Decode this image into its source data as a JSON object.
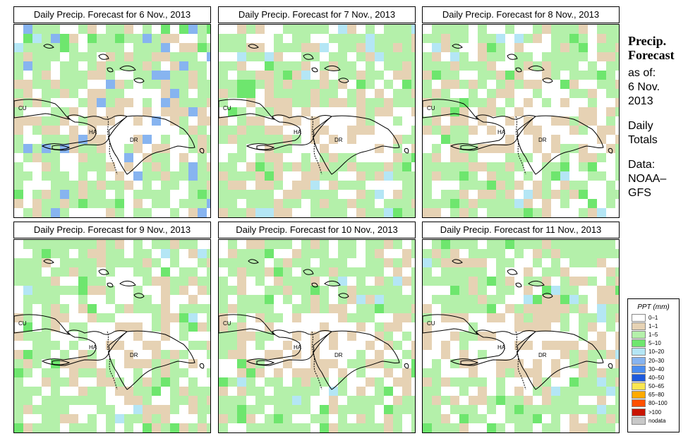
{
  "panels": [
    {
      "title": "Daily Precip. Forecast for  6 Nov., 2013",
      "seed": 11,
      "wet": 0.62
    },
    {
      "title": "Daily Precip. Forecast for  7 Nov., 2013",
      "seed": 23,
      "wet": 0.4
    },
    {
      "title": "Daily Precip. Forecast for  8 Nov., 2013",
      "seed": 37,
      "wet": 0.3
    },
    {
      "title": "Daily Precip. Forecast for  9 Nov., 2013",
      "seed": 41,
      "wet": 0.25
    },
    {
      "title": "Daily Precip. Forecast for  10 Nov., 2013",
      "seed": 53,
      "wet": 0.3
    },
    {
      "title": "Daily Precip. Forecast for  11 Nov., 2013",
      "seed": 67,
      "wet": 0.26
    }
  ],
  "map_labels": {
    "cuba": "CU",
    "haiti": "HA",
    "dominican_republic": "DR"
  },
  "sidebar": {
    "title_line1": "Precip.",
    "title_line2": "Forecast",
    "as_of_label": "as of:",
    "date_line1": "6 Nov.",
    "date_line2": "2013",
    "totals_line1": "Daily",
    "totals_line2": "Totals",
    "data_line1": "Data:",
    "data_line2": "NOAA–",
    "data_line3": "GFS"
  },
  "legend": {
    "title": "PPT (mm)",
    "classes": [
      {
        "label": "0–1",
        "color": "#ffffff"
      },
      {
        "label": "1–1",
        "color": "#e6d2b4"
      },
      {
        "label": "1–5",
        "color": "#b4f0aa"
      },
      {
        "label": "5–10",
        "color": "#6ee66e"
      },
      {
        "label": "10–20",
        "color": "#b4e6f5"
      },
      {
        "label": "20–30",
        "color": "#87b4f0"
      },
      {
        "label": "30–40",
        "color": "#4a8cf0"
      },
      {
        "label": "40–50",
        "color": "#1e5adc"
      },
      {
        "label": "50–65",
        "color": "#fae650"
      },
      {
        "label": "65–80",
        "color": "#ffaa00"
      },
      {
        "label": "80–100",
        "color": "#ff5000"
      },
      {
        "label": ">100",
        "color": "#c81400"
      },
      {
        "label": "nodata",
        "color": "#c8c8c8"
      }
    ]
  }
}
